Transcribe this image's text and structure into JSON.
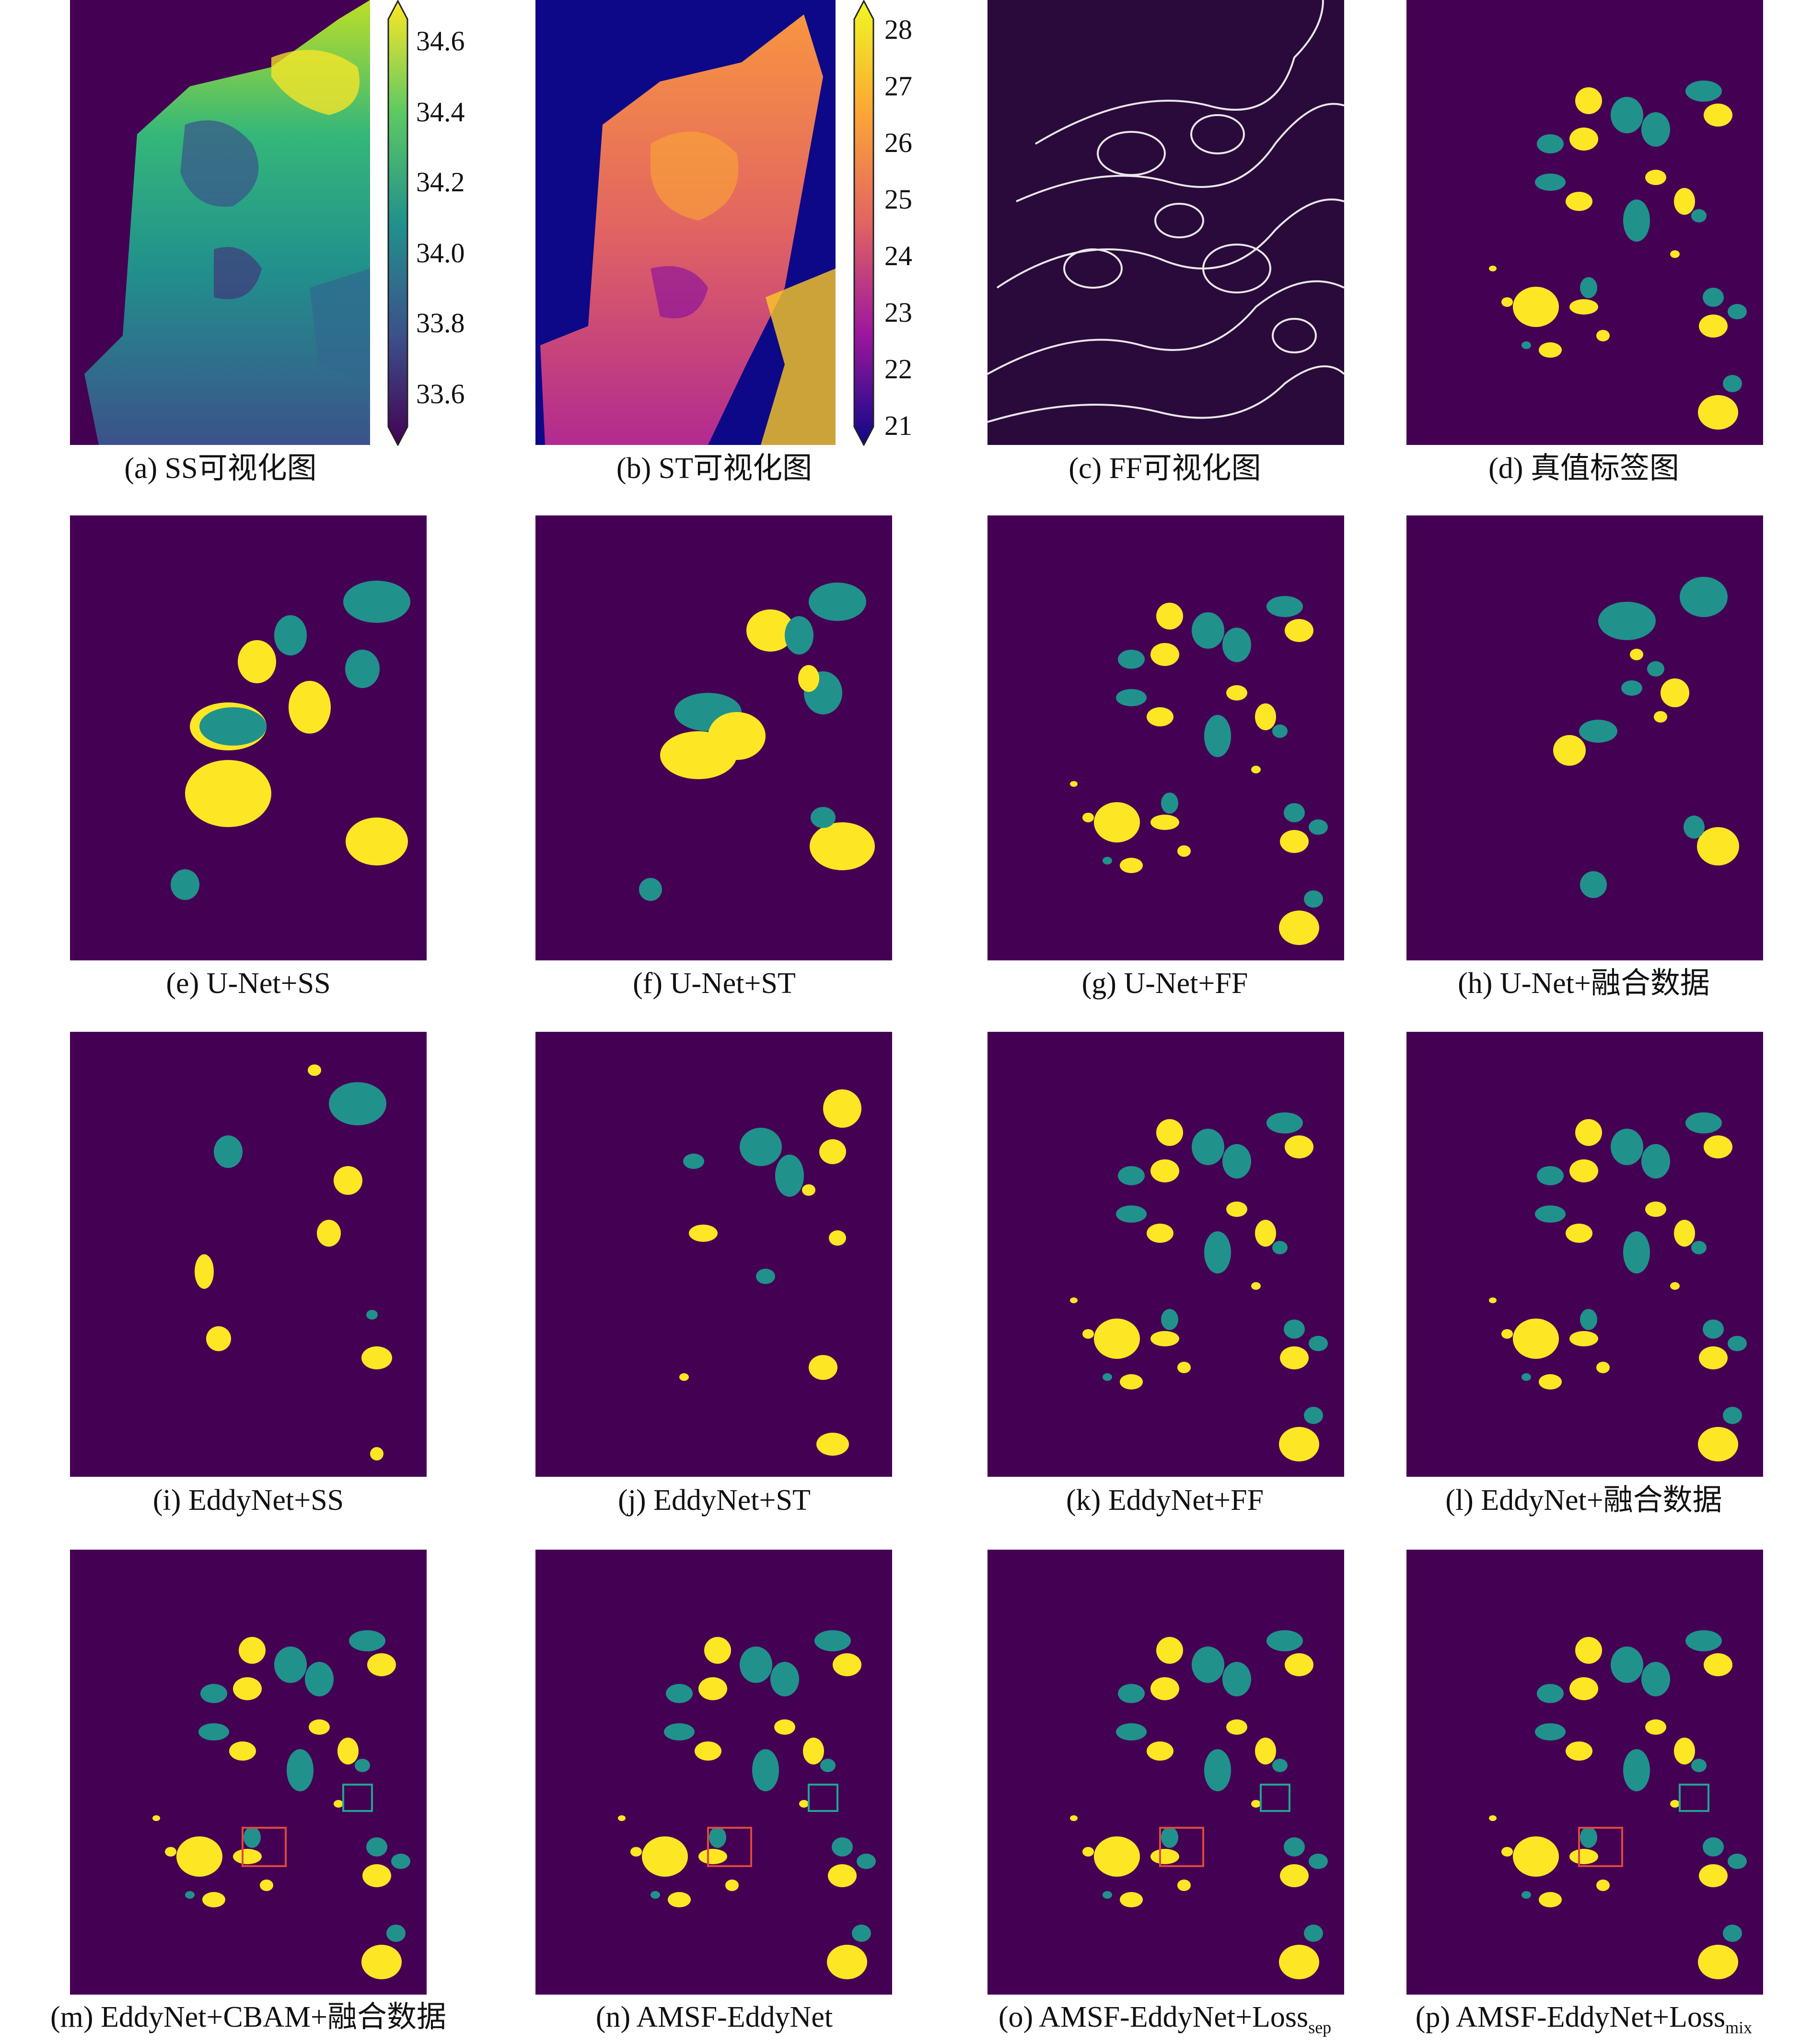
{
  "figure": {
    "panels": [
      {
        "id": "a",
        "caption": "(a) SS可视化图",
        "kind": "salinity"
      },
      {
        "id": "b",
        "caption": "(b) ST可视化图",
        "kind": "temperature"
      },
      {
        "id": "c",
        "caption": "(c) FF可视化图",
        "kind": "flow"
      },
      {
        "id": "d",
        "caption": "(d) 真值标签图",
        "kind": "label"
      },
      {
        "id": "e",
        "caption": "(e) U-Net+SS",
        "kind": "label"
      },
      {
        "id": "f",
        "caption": "(f) U-Net+ST",
        "kind": "label"
      },
      {
        "id": "g",
        "caption": "(g) U-Net+FF",
        "kind": "label"
      },
      {
        "id": "h",
        "caption": "(h) U-Net+融合数据",
        "kind": "label"
      },
      {
        "id": "i",
        "caption": "(i) EddyNet+SS",
        "kind": "label"
      },
      {
        "id": "j",
        "caption": "(j) EddyNet+ST",
        "kind": "label"
      },
      {
        "id": "k",
        "caption": "(k) EddyNet+FF",
        "kind": "label"
      },
      {
        "id": "l",
        "caption": "(l) EddyNet+融合数据",
        "kind": "label"
      },
      {
        "id": "m",
        "caption": "(m) EddyNet+CBAM+融合数据",
        "kind": "label"
      },
      {
        "id": "n",
        "caption": "(n) AMSF-EddyNet",
        "kind": "label"
      },
      {
        "id": "o",
        "caption": "(o) AMSF-EddyNet+Loss",
        "caption_sub": "sep",
        "kind": "label"
      },
      {
        "id": "p",
        "caption": "(p) AMSF-EddyNet+Loss",
        "caption_sub": "mix",
        "kind": "label"
      }
    ],
    "colorbars": [
      {
        "id": "ss",
        "ticks": [
          "34.6",
          "34.4",
          "34.2",
          "34.0",
          "33.8",
          "33.6"
        ],
        "cmap": "viridis"
      },
      {
        "id": "st",
        "ticks": [
          "28",
          "27",
          "26",
          "25",
          "24",
          "23",
          "22",
          "21"
        ],
        "cmap": "plasma"
      }
    ],
    "colors": {
      "background": "#440154",
      "anticyclonic": "#fde725",
      "cyclonic": "#21918c",
      "box_red": "#e0473a",
      "box_teal": "#21a58f",
      "land_ss": "#440154",
      "land_st": "#0d0887",
      "land_ff": "#2a0a3a"
    }
  }
}
